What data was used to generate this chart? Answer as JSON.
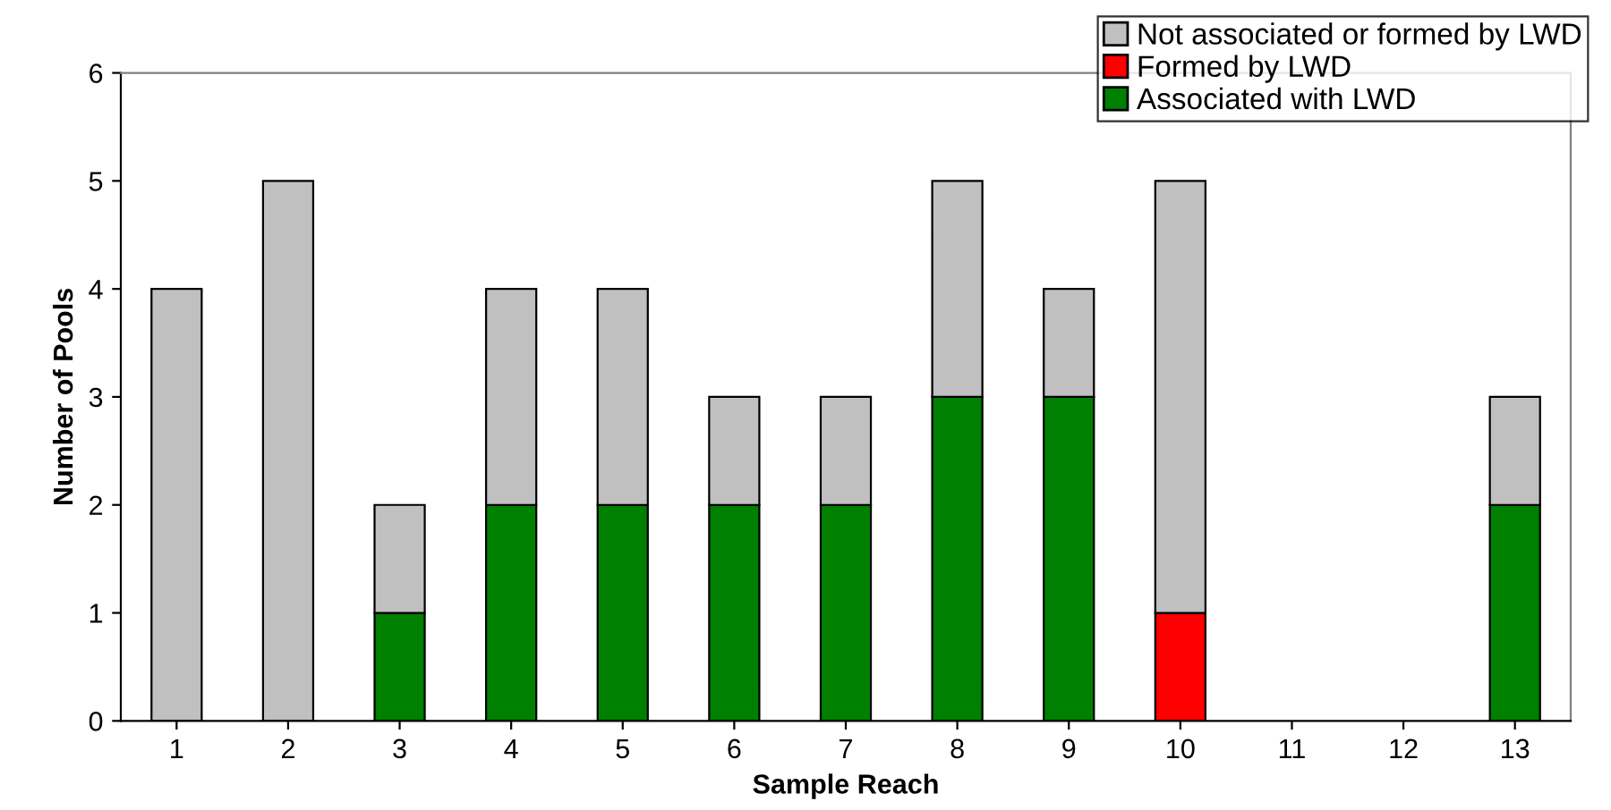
{
  "chart_data": {
    "type": "bar",
    "stacked": true,
    "xlabel": "Sample Reach",
    "ylabel": "Number of Pools",
    "categories": [
      "1",
      "2",
      "3",
      "4",
      "5",
      "6",
      "7",
      "8",
      "9",
      "10",
      "11",
      "12",
      "13"
    ],
    "series": [
      {
        "name": "Associated with LWD",
        "color": "#008000",
        "values": [
          0,
          0,
          1,
          2,
          2,
          2,
          2,
          3,
          3,
          0,
          0,
          0,
          2
        ]
      },
      {
        "name": "Formed by LWD",
        "color": "#ff0000",
        "values": [
          0,
          0,
          0,
          0,
          0,
          0,
          0,
          0,
          0,
          1,
          0,
          0,
          0
        ]
      },
      {
        "name": "Not associated or formed by LWD",
        "color": "#c0c0c0",
        "values": [
          4,
          5,
          1,
          2,
          2,
          1,
          1,
          2,
          1,
          4,
          0,
          0,
          1
        ]
      }
    ],
    "ylim": [
      0,
      6
    ],
    "yticks": [
      0,
      1,
      2,
      3,
      4,
      5,
      6
    ],
    "grid": false,
    "legend": "top right"
  }
}
